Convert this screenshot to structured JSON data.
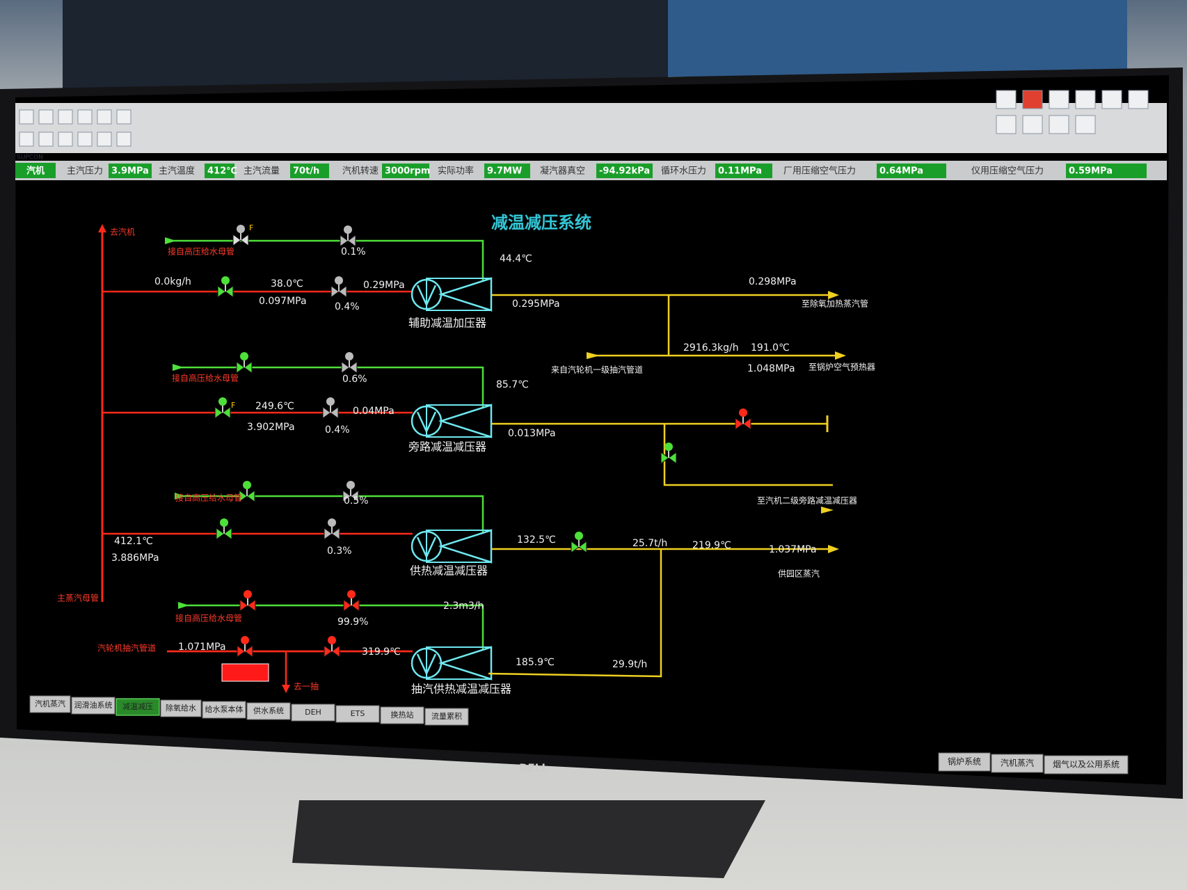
{
  "brand": "SUPCON",
  "status_bar": {
    "section": "汽机",
    "items": [
      {
        "label": "主汽压力",
        "value": "3.9MPa"
      },
      {
        "label": "主汽温度",
        "value": "412℃"
      },
      {
        "label": "主汽流量",
        "value": "70t/h"
      },
      {
        "label": "汽机转速",
        "value": "3000rpm"
      },
      {
        "label": "实际功率",
        "value": "9.7MW"
      },
      {
        "label": "凝汽器真空",
        "value": "-94.92kPa"
      },
      {
        "label": "循环水压力",
        "value": "0.11MPa"
      },
      {
        "label": "厂用压缩空气压力",
        "value": "0.64MPa"
      },
      {
        "label": "仪用压缩空气压力",
        "value": "0.59MPa"
      }
    ]
  },
  "diagram": {
    "title": "减温减压系统",
    "to_turbine": "去汽机",
    "main_steam_header": "主蒸汽母管",
    "valve_flag": "F",
    "water_source": "接自高压给水母管",
    "extraction_source": "汽轮机抽汽管道",
    "branch": {
      "source": "来自汽轮机一级抽汽管道",
      "destination": "至锅炉空气预热器",
      "readings": [
        "2916.3kg/h",
        "191.0℃",
        "1.048MPa"
      ]
    },
    "units": [
      {
        "name": "辅助减温加压器",
        "destination": "至除氧加热蒸汽管",
        "readings": [
          "0.1%",
          "44.4℃",
          "0.0kg/h",
          "38.0℃",
          "0.097MPa",
          "0.29MPa",
          "0.4%",
          "0.295MPa",
          "0.298MPa"
        ]
      },
      {
        "name": "旁路减温减压器",
        "destination": "至汽机二级旁路减温减压器",
        "readings": [
          "0.6%",
          "85.7℃",
          "249.6℃",
          "3.902MPa",
          "0.04MPa",
          "0.4%",
          "0.013MPa"
        ]
      },
      {
        "name": "供热减温减压器",
        "destination": "供园区蒸汽",
        "readings": [
          "0.5%",
          "412.1℃",
          "3.886MPa",
          "0.3%",
          "132.5℃",
          "25.7t/h",
          "219.9℃",
          "1.037MPa"
        ]
      },
      {
        "name": "抽汽供热减温减压器",
        "destination": "去一抽",
        "readings": [
          "2.3m3/h",
          "99.9%",
          "1.071MPa",
          "319.9℃",
          "185.9℃",
          "29.9t/h"
        ]
      }
    ]
  },
  "bottom_tabs": [
    "汽机蒸汽",
    "润滑油系统",
    "减温减压",
    "除氧给水",
    "给水泵本体",
    "供水系统",
    "DEH",
    "ETS",
    "换热站",
    "流量累积"
  ],
  "system_tabs": [
    "锅炉系统",
    "汽机蒸汽",
    "烟气以及公用系统"
  ],
  "monitor_logo": "DELL"
}
